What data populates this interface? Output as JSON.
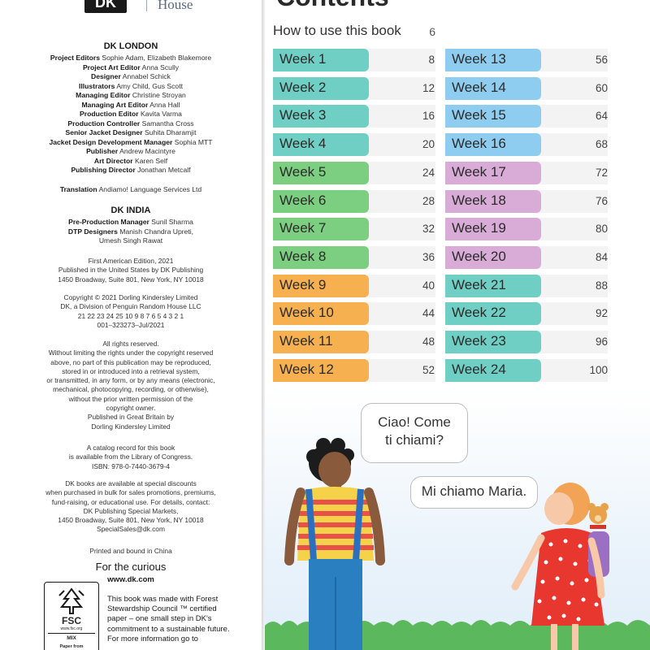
{
  "logo": {
    "mark": "DK",
    "wordmark": "House"
  },
  "credits": {
    "london_heading": "DK LONDON",
    "london": [
      {
        "role": "Project Editors",
        "name": "Sophie Adam, Elizabeth Blakemore"
      },
      {
        "role": "Project Art Editor",
        "name": "Anna Scully"
      },
      {
        "role": "Designer",
        "name": "Annabel Schick"
      },
      {
        "role": "Illustrators",
        "name": "Amy Child, Gus Scott"
      },
      {
        "role": "Managing Editor",
        "name": "Christine Stroyan"
      },
      {
        "role": "Managing Art Editor",
        "name": "Anna Hall"
      },
      {
        "role": "Production Editor",
        "name": "Kavita Varma"
      },
      {
        "role": "Production Controller",
        "name": "Samantha Cross"
      },
      {
        "role": "Senior Jacket Designer",
        "name": "Suhita Dharamjit"
      },
      {
        "role": "Jacket Design Development Manager",
        "name": "Sophia MTT"
      },
      {
        "role": "Publisher",
        "name": "Andrew Macintyre"
      },
      {
        "role": "Art Director",
        "name": "Karen Self"
      },
      {
        "role": "Publishing Director",
        "name": "Jonathan Metcalf"
      }
    ],
    "translation": {
      "role": "Translation",
      "name": "Andiamo! Language Services Ltd"
    },
    "india_heading": "DK INDIA",
    "india": [
      {
        "role": "Pre-Production Manager",
        "name": "Sunil Sharma"
      },
      {
        "role": "DTP Designers",
        "name": "Manish Chandra Upreti,"
      }
    ],
    "india_extra": "Umesh Singh Rawat"
  },
  "edition": [
    "First American Edition, 2021",
    "Published in the United States by DK Publishing",
    "1450 Broadway, Suite 801, New York, NY 10018"
  ],
  "copyright": [
    "Copyright © 2021 Dorling Kindersley Limited",
    "DK, a Division of Penguin Random House LLC",
    "21 22 23 24 25 10 9 8 7 6 5 4 3 2 1",
    "001–323273–Jul/2021"
  ],
  "rights": [
    "All rights reserved.",
    "Without limiting the rights under the copyright reserved",
    "above, no part of this publication may be reproduced,",
    "stored in or introduced into a retrieval system,",
    "or transmitted, in any form, or by any means (electronic,",
    "mechanical, photocopying, recording, or otherwise),",
    "without the prior written permission of the",
    "copyright owner.",
    "Published in Great Britain by",
    "Dorling Kindersley Limited"
  ],
  "catalog": [
    "A catalog record for this book",
    "is available from the Library of Congress.",
    "ISBN: 978-0-7440-3679-4"
  ],
  "special_sales": [
    "DK books are available at special discounts",
    "when purchased in bulk for sales promotions, premiums,",
    "fund-raising, or educational use. For details, contact:",
    "DK Publishing Special Markets,",
    "1450 Broadway, Suite 801, New York, NY 10018",
    "SpecialSales@dk.com"
  ],
  "printed": "Printed and bound in China",
  "tagline": "For the curious",
  "website": "www.dk.com",
  "fsc": {
    "logo_text": "FSC",
    "url": "www.fsc.org",
    "mix": "MIX",
    "paper": "Paper from",
    "icon": "fsc-tree-icon",
    "description": [
      "This book was made with Forest",
      "Stewardship Council ™ certified",
      "paper – one small step in DK's",
      "commitment to a sustainable future.",
      "For more information go to"
    ]
  },
  "contents": {
    "title": "Contents",
    "how_to_use": {
      "label": "How to use this book",
      "page": "6"
    },
    "weeks": [
      {
        "label": "Week 1",
        "page": "8"
      },
      {
        "label": "Week 2",
        "page": "12"
      },
      {
        "label": "Week 3",
        "page": "16"
      },
      {
        "label": "Week 4",
        "page": "20"
      },
      {
        "label": "Week 5",
        "page": "24"
      },
      {
        "label": "Week 6",
        "page": "28"
      },
      {
        "label": "Week 7",
        "page": "32"
      },
      {
        "label": "Week 8",
        "page": "36"
      },
      {
        "label": "Week 9",
        "page": "40"
      },
      {
        "label": "Week 10",
        "page": "44"
      },
      {
        "label": "Week 11",
        "page": "48"
      },
      {
        "label": "Week 12",
        "page": "52"
      },
      {
        "label": "Week 13",
        "page": "56"
      },
      {
        "label": "Week 14",
        "page": "60"
      },
      {
        "label": "Week 15",
        "page": "64"
      },
      {
        "label": "Week 16",
        "page": "68"
      },
      {
        "label": "Week 17",
        "page": "72"
      },
      {
        "label": "Week 18",
        "page": "76"
      },
      {
        "label": "Week 19",
        "page": "80"
      },
      {
        "label": "Week 20",
        "page": "84"
      },
      {
        "label": "Week 21",
        "page": "88"
      },
      {
        "label": "Week 22",
        "page": "92"
      },
      {
        "label": "Week 23",
        "page": "96"
      },
      {
        "label": "Week 24",
        "page": "100"
      }
    ]
  },
  "colors": {
    "teal": "#6fcfc4",
    "green": "#7ccf80",
    "orange": "#f6b04f",
    "blue": "#8ecdf0",
    "lilac": "#d9acd8"
  },
  "dialogue": {
    "boy": "Ciao! Come ti chiami?",
    "girl": "Mi chiamo Maria."
  }
}
